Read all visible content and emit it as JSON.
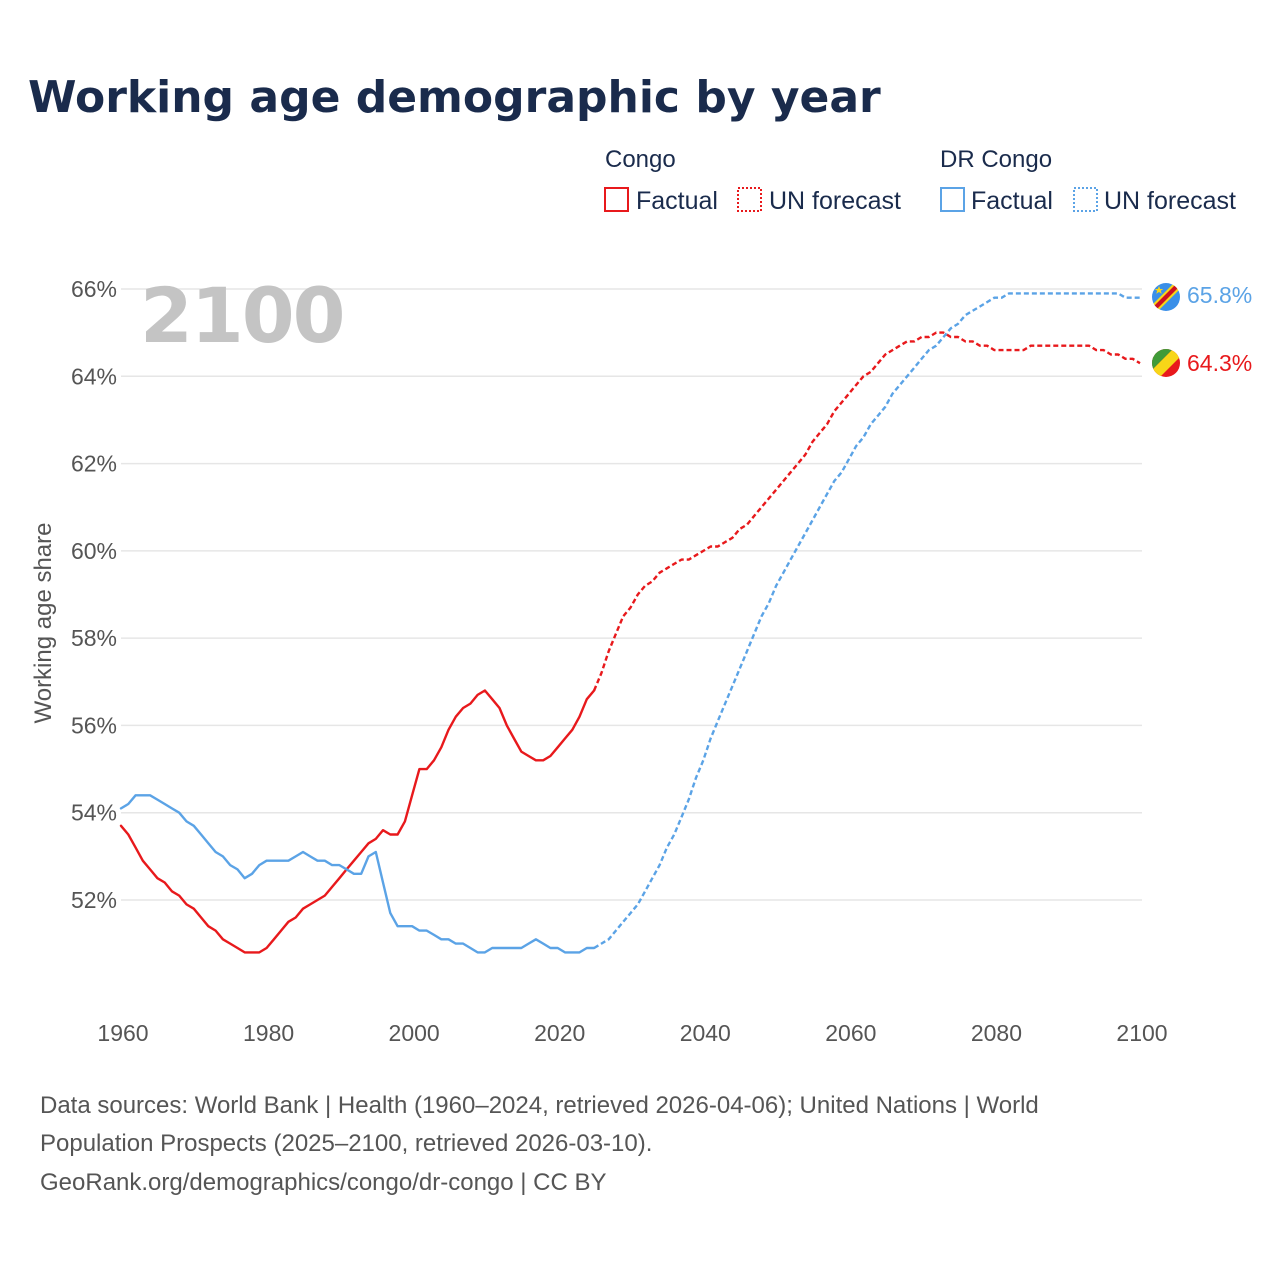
{
  "chart_data": {
    "type": "line",
    "title": "Working age demographic by year",
    "ylabel": "Working age share",
    "xlabel": "",
    "xlim": [
      1960,
      2100
    ],
    "ylim": [
      49.7,
      66.5
    ],
    "x_ticks": [
      "1960",
      "1980",
      "2000",
      "2020",
      "2040",
      "2060",
      "2080",
      "2100"
    ],
    "y_ticks": [
      {
        "value": 52,
        "label": "52%"
      },
      {
        "value": 54,
        "label": "54%"
      },
      {
        "value": 56,
        "label": "56%"
      },
      {
        "value": 58,
        "label": "58%"
      },
      {
        "value": 60,
        "label": "60%"
      },
      {
        "value": 62,
        "label": "62%"
      },
      {
        "value": 64,
        "label": "64%"
      },
      {
        "value": 66,
        "label": "66%"
      }
    ],
    "current_year": "2100",
    "legend": {
      "groups": [
        {
          "title": "Congo",
          "color": "#e8191c",
          "factual_label": "Factual",
          "forecast_label": "UN forecast"
        },
        {
          "title": "DR Congo",
          "color": "#5ba3e6",
          "factual_label": "Factual",
          "forecast_label": "UN forecast"
        }
      ]
    },
    "series": [
      {
        "name": "Congo",
        "color": "#e8191c",
        "end_label": "64.3%",
        "factual": [
          [
            1960,
            53.7
          ],
          [
            1961,
            53.5
          ],
          [
            1962,
            53.2
          ],
          [
            1963,
            52.9
          ],
          [
            1964,
            52.7
          ],
          [
            1965,
            52.5
          ],
          [
            1966,
            52.4
          ],
          [
            1967,
            52.2
          ],
          [
            1968,
            52.1
          ],
          [
            1969,
            51.9
          ],
          [
            1970,
            51.8
          ],
          [
            1971,
            51.6
          ],
          [
            1972,
            51.4
          ],
          [
            1973,
            51.3
          ],
          [
            1974,
            51.1
          ],
          [
            1975,
            51.0
          ],
          [
            1976,
            50.9
          ],
          [
            1977,
            50.8
          ],
          [
            1978,
            50.8
          ],
          [
            1979,
            50.8
          ],
          [
            1980,
            50.9
          ],
          [
            1981,
            51.1
          ],
          [
            1982,
            51.3
          ],
          [
            1983,
            51.5
          ],
          [
            1984,
            51.6
          ],
          [
            1985,
            51.8
          ],
          [
            1986,
            51.9
          ],
          [
            1987,
            52.0
          ],
          [
            1988,
            52.1
          ],
          [
            1989,
            52.3
          ],
          [
            1990,
            52.5
          ],
          [
            1991,
            52.7
          ],
          [
            1992,
            52.9
          ],
          [
            1993,
            53.1
          ],
          [
            1994,
            53.3
          ],
          [
            1995,
            53.4
          ],
          [
            1996,
            53.6
          ],
          [
            1997,
            53.5
          ],
          [
            1998,
            53.5
          ],
          [
            1999,
            53.8
          ],
          [
            2000,
            54.4
          ],
          [
            2001,
            55.0
          ],
          [
            2002,
            55.0
          ],
          [
            2003,
            55.2
          ],
          [
            2004,
            55.5
          ],
          [
            2005,
            55.9
          ],
          [
            2006,
            56.2
          ],
          [
            2007,
            56.4
          ],
          [
            2008,
            56.5
          ],
          [
            2009,
            56.7
          ],
          [
            2010,
            56.8
          ],
          [
            2011,
            56.6
          ],
          [
            2012,
            56.4
          ],
          [
            2013,
            56.0
          ],
          [
            2014,
            55.7
          ],
          [
            2015,
            55.4
          ],
          [
            2016,
            55.3
          ],
          [
            2017,
            55.2
          ],
          [
            2018,
            55.2
          ],
          [
            2019,
            55.3
          ],
          [
            2020,
            55.5
          ],
          [
            2021,
            55.7
          ],
          [
            2022,
            55.9
          ],
          [
            2023,
            56.2
          ],
          [
            2024,
            56.6
          ],
          [
            2025,
            56.8
          ]
        ],
        "forecast": [
          [
            2025,
            56.8
          ],
          [
            2026,
            57.2
          ],
          [
            2027,
            57.7
          ],
          [
            2028,
            58.1
          ],
          [
            2029,
            58.5
          ],
          [
            2030,
            58.7
          ],
          [
            2031,
            59.0
          ],
          [
            2032,
            59.2
          ],
          [
            2033,
            59.3
          ],
          [
            2034,
            59.5
          ],
          [
            2035,
            59.6
          ],
          [
            2036,
            59.7
          ],
          [
            2037,
            59.8
          ],
          [
            2038,
            59.8
          ],
          [
            2039,
            59.9
          ],
          [
            2040,
            60.0
          ],
          [
            2041,
            60.1
          ],
          [
            2042,
            60.1
          ],
          [
            2043,
            60.2
          ],
          [
            2044,
            60.3
          ],
          [
            2045,
            60.5
          ],
          [
            2046,
            60.6
          ],
          [
            2047,
            60.8
          ],
          [
            2048,
            61.0
          ],
          [
            2049,
            61.2
          ],
          [
            2050,
            61.4
          ],
          [
            2051,
            61.6
          ],
          [
            2052,
            61.8
          ],
          [
            2053,
            62.0
          ],
          [
            2054,
            62.2
          ],
          [
            2055,
            62.5
          ],
          [
            2056,
            62.7
          ],
          [
            2057,
            62.9
          ],
          [
            2058,
            63.2
          ],
          [
            2059,
            63.4
          ],
          [
            2060,
            63.6
          ],
          [
            2061,
            63.8
          ],
          [
            2062,
            64.0
          ],
          [
            2063,
            64.1
          ],
          [
            2064,
            64.3
          ],
          [
            2065,
            64.5
          ],
          [
            2066,
            64.6
          ],
          [
            2067,
            64.7
          ],
          [
            2068,
            64.8
          ],
          [
            2069,
            64.8
          ],
          [
            2070,
            64.9
          ],
          [
            2071,
            64.9
          ],
          [
            2072,
            65.0
          ],
          [
            2073,
            65.0
          ],
          [
            2074,
            64.9
          ],
          [
            2075,
            64.9
          ],
          [
            2076,
            64.8
          ],
          [
            2077,
            64.8
          ],
          [
            2078,
            64.7
          ],
          [
            2079,
            64.7
          ],
          [
            2080,
            64.6
          ],
          [
            2081,
            64.6
          ],
          [
            2082,
            64.6
          ],
          [
            2083,
            64.6
          ],
          [
            2084,
            64.6
          ],
          [
            2085,
            64.7
          ],
          [
            2086,
            64.7
          ],
          [
            2087,
            64.7
          ],
          [
            2088,
            64.7
          ],
          [
            2089,
            64.7
          ],
          [
            2090,
            64.7
          ],
          [
            2091,
            64.7
          ],
          [
            2092,
            64.7
          ],
          [
            2093,
            64.7
          ],
          [
            2094,
            64.6
          ],
          [
            2095,
            64.6
          ],
          [
            2096,
            64.5
          ],
          [
            2097,
            64.5
          ],
          [
            2098,
            64.4
          ],
          [
            2099,
            64.4
          ],
          [
            2100,
            64.3
          ]
        ]
      },
      {
        "name": "DR Congo",
        "color": "#5ba3e6",
        "end_label": "65.8%",
        "factual": [
          [
            1960,
            54.1
          ],
          [
            1961,
            54.2
          ],
          [
            1962,
            54.4
          ],
          [
            1963,
            54.4
          ],
          [
            1964,
            54.4
          ],
          [
            1965,
            54.3
          ],
          [
            1966,
            54.2
          ],
          [
            1967,
            54.1
          ],
          [
            1968,
            54.0
          ],
          [
            1969,
            53.8
          ],
          [
            1970,
            53.7
          ],
          [
            1971,
            53.5
          ],
          [
            1972,
            53.3
          ],
          [
            1973,
            53.1
          ],
          [
            1974,
            53.0
          ],
          [
            1975,
            52.8
          ],
          [
            1976,
            52.7
          ],
          [
            1977,
            52.5
          ],
          [
            1978,
            52.6
          ],
          [
            1979,
            52.8
          ],
          [
            1980,
            52.9
          ],
          [
            1981,
            52.9
          ],
          [
            1982,
            52.9
          ],
          [
            1983,
            52.9
          ],
          [
            1984,
            53.0
          ],
          [
            1985,
            53.1
          ],
          [
            1986,
            53.0
          ],
          [
            1987,
            52.9
          ],
          [
            1988,
            52.9
          ],
          [
            1989,
            52.8
          ],
          [
            1990,
            52.8
          ],
          [
            1991,
            52.7
          ],
          [
            1992,
            52.6
          ],
          [
            1993,
            52.6
          ],
          [
            1994,
            53.0
          ],
          [
            1995,
            53.1
          ],
          [
            1996,
            52.4
          ],
          [
            1997,
            51.7
          ],
          [
            1998,
            51.4
          ],
          [
            1999,
            51.4
          ],
          [
            2000,
            51.4
          ],
          [
            2001,
            51.3
          ],
          [
            2002,
            51.3
          ],
          [
            2003,
            51.2
          ],
          [
            2004,
            51.1
          ],
          [
            2005,
            51.1
          ],
          [
            2006,
            51.0
          ],
          [
            2007,
            51.0
          ],
          [
            2008,
            50.9
          ],
          [
            2009,
            50.8
          ],
          [
            2010,
            50.8
          ],
          [
            2011,
            50.9
          ],
          [
            2012,
            50.9
          ],
          [
            2013,
            50.9
          ],
          [
            2014,
            50.9
          ],
          [
            2015,
            50.9
          ],
          [
            2016,
            51.0
          ],
          [
            2017,
            51.1
          ],
          [
            2018,
            51.0
          ],
          [
            2019,
            50.9
          ],
          [
            2020,
            50.9
          ],
          [
            2021,
            50.8
          ],
          [
            2022,
            50.8
          ],
          [
            2023,
            50.8
          ],
          [
            2024,
            50.9
          ],
          [
            2025,
            50.9
          ]
        ],
        "forecast": [
          [
            2025,
            50.9
          ],
          [
            2026,
            51.0
          ],
          [
            2027,
            51.1
          ],
          [
            2028,
            51.3
          ],
          [
            2029,
            51.5
          ],
          [
            2030,
            51.7
          ],
          [
            2031,
            51.9
          ],
          [
            2032,
            52.2
          ],
          [
            2033,
            52.5
          ],
          [
            2034,
            52.8
          ],
          [
            2035,
            53.2
          ],
          [
            2036,
            53.5
          ],
          [
            2037,
            53.9
          ],
          [
            2038,
            54.3
          ],
          [
            2039,
            54.8
          ],
          [
            2040,
            55.2
          ],
          [
            2041,
            55.7
          ],
          [
            2042,
            56.1
          ],
          [
            2043,
            56.5
          ],
          [
            2044,
            56.9
          ],
          [
            2045,
            57.3
          ],
          [
            2046,
            57.7
          ],
          [
            2047,
            58.1
          ],
          [
            2048,
            58.5
          ],
          [
            2049,
            58.8
          ],
          [
            2050,
            59.2
          ],
          [
            2051,
            59.5
          ],
          [
            2052,
            59.8
          ],
          [
            2053,
            60.1
          ],
          [
            2054,
            60.4
          ],
          [
            2055,
            60.7
          ],
          [
            2056,
            61.0
          ],
          [
            2057,
            61.3
          ],
          [
            2058,
            61.6
          ],
          [
            2059,
            61.8
          ],
          [
            2060,
            62.1
          ],
          [
            2061,
            62.4
          ],
          [
            2062,
            62.6
          ],
          [
            2063,
            62.9
          ],
          [
            2064,
            63.1
          ],
          [
            2065,
            63.3
          ],
          [
            2066,
            63.6
          ],
          [
            2067,
            63.8
          ],
          [
            2068,
            64.0
          ],
          [
            2069,
            64.2
          ],
          [
            2070,
            64.4
          ],
          [
            2071,
            64.6
          ],
          [
            2072,
            64.7
          ],
          [
            2073,
            64.9
          ],
          [
            2074,
            65.1
          ],
          [
            2075,
            65.2
          ],
          [
            2076,
            65.4
          ],
          [
            2077,
            65.5
          ],
          [
            2078,
            65.6
          ],
          [
            2079,
            65.7
          ],
          [
            2080,
            65.8
          ],
          [
            2081,
            65.8
          ],
          [
            2082,
            65.9
          ],
          [
            2083,
            65.9
          ],
          [
            2084,
            65.9
          ],
          [
            2085,
            65.9
          ],
          [
            2086,
            65.9
          ],
          [
            2087,
            65.9
          ],
          [
            2088,
            65.9
          ],
          [
            2089,
            65.9
          ],
          [
            2090,
            65.9
          ],
          [
            2091,
            65.9
          ],
          [
            2092,
            65.9
          ],
          [
            2093,
            65.9
          ],
          [
            2094,
            65.9
          ],
          [
            2095,
            65.9
          ],
          [
            2096,
            65.9
          ],
          [
            2097,
            65.9
          ],
          [
            2098,
            65.8
          ],
          [
            2099,
            65.8
          ],
          [
            2100,
            65.8
          ]
        ]
      }
    ]
  },
  "footer": {
    "source_line1": "Data sources: World Bank | Health (1960–2024, retrieved 2026-04-06); United Nations | World",
    "source_line2": "Population Prospects (2025–2100, retrieved 2026-03-10).",
    "source_line3": "GeoRank.org/demographics/congo/dr-congo | CC BY"
  }
}
